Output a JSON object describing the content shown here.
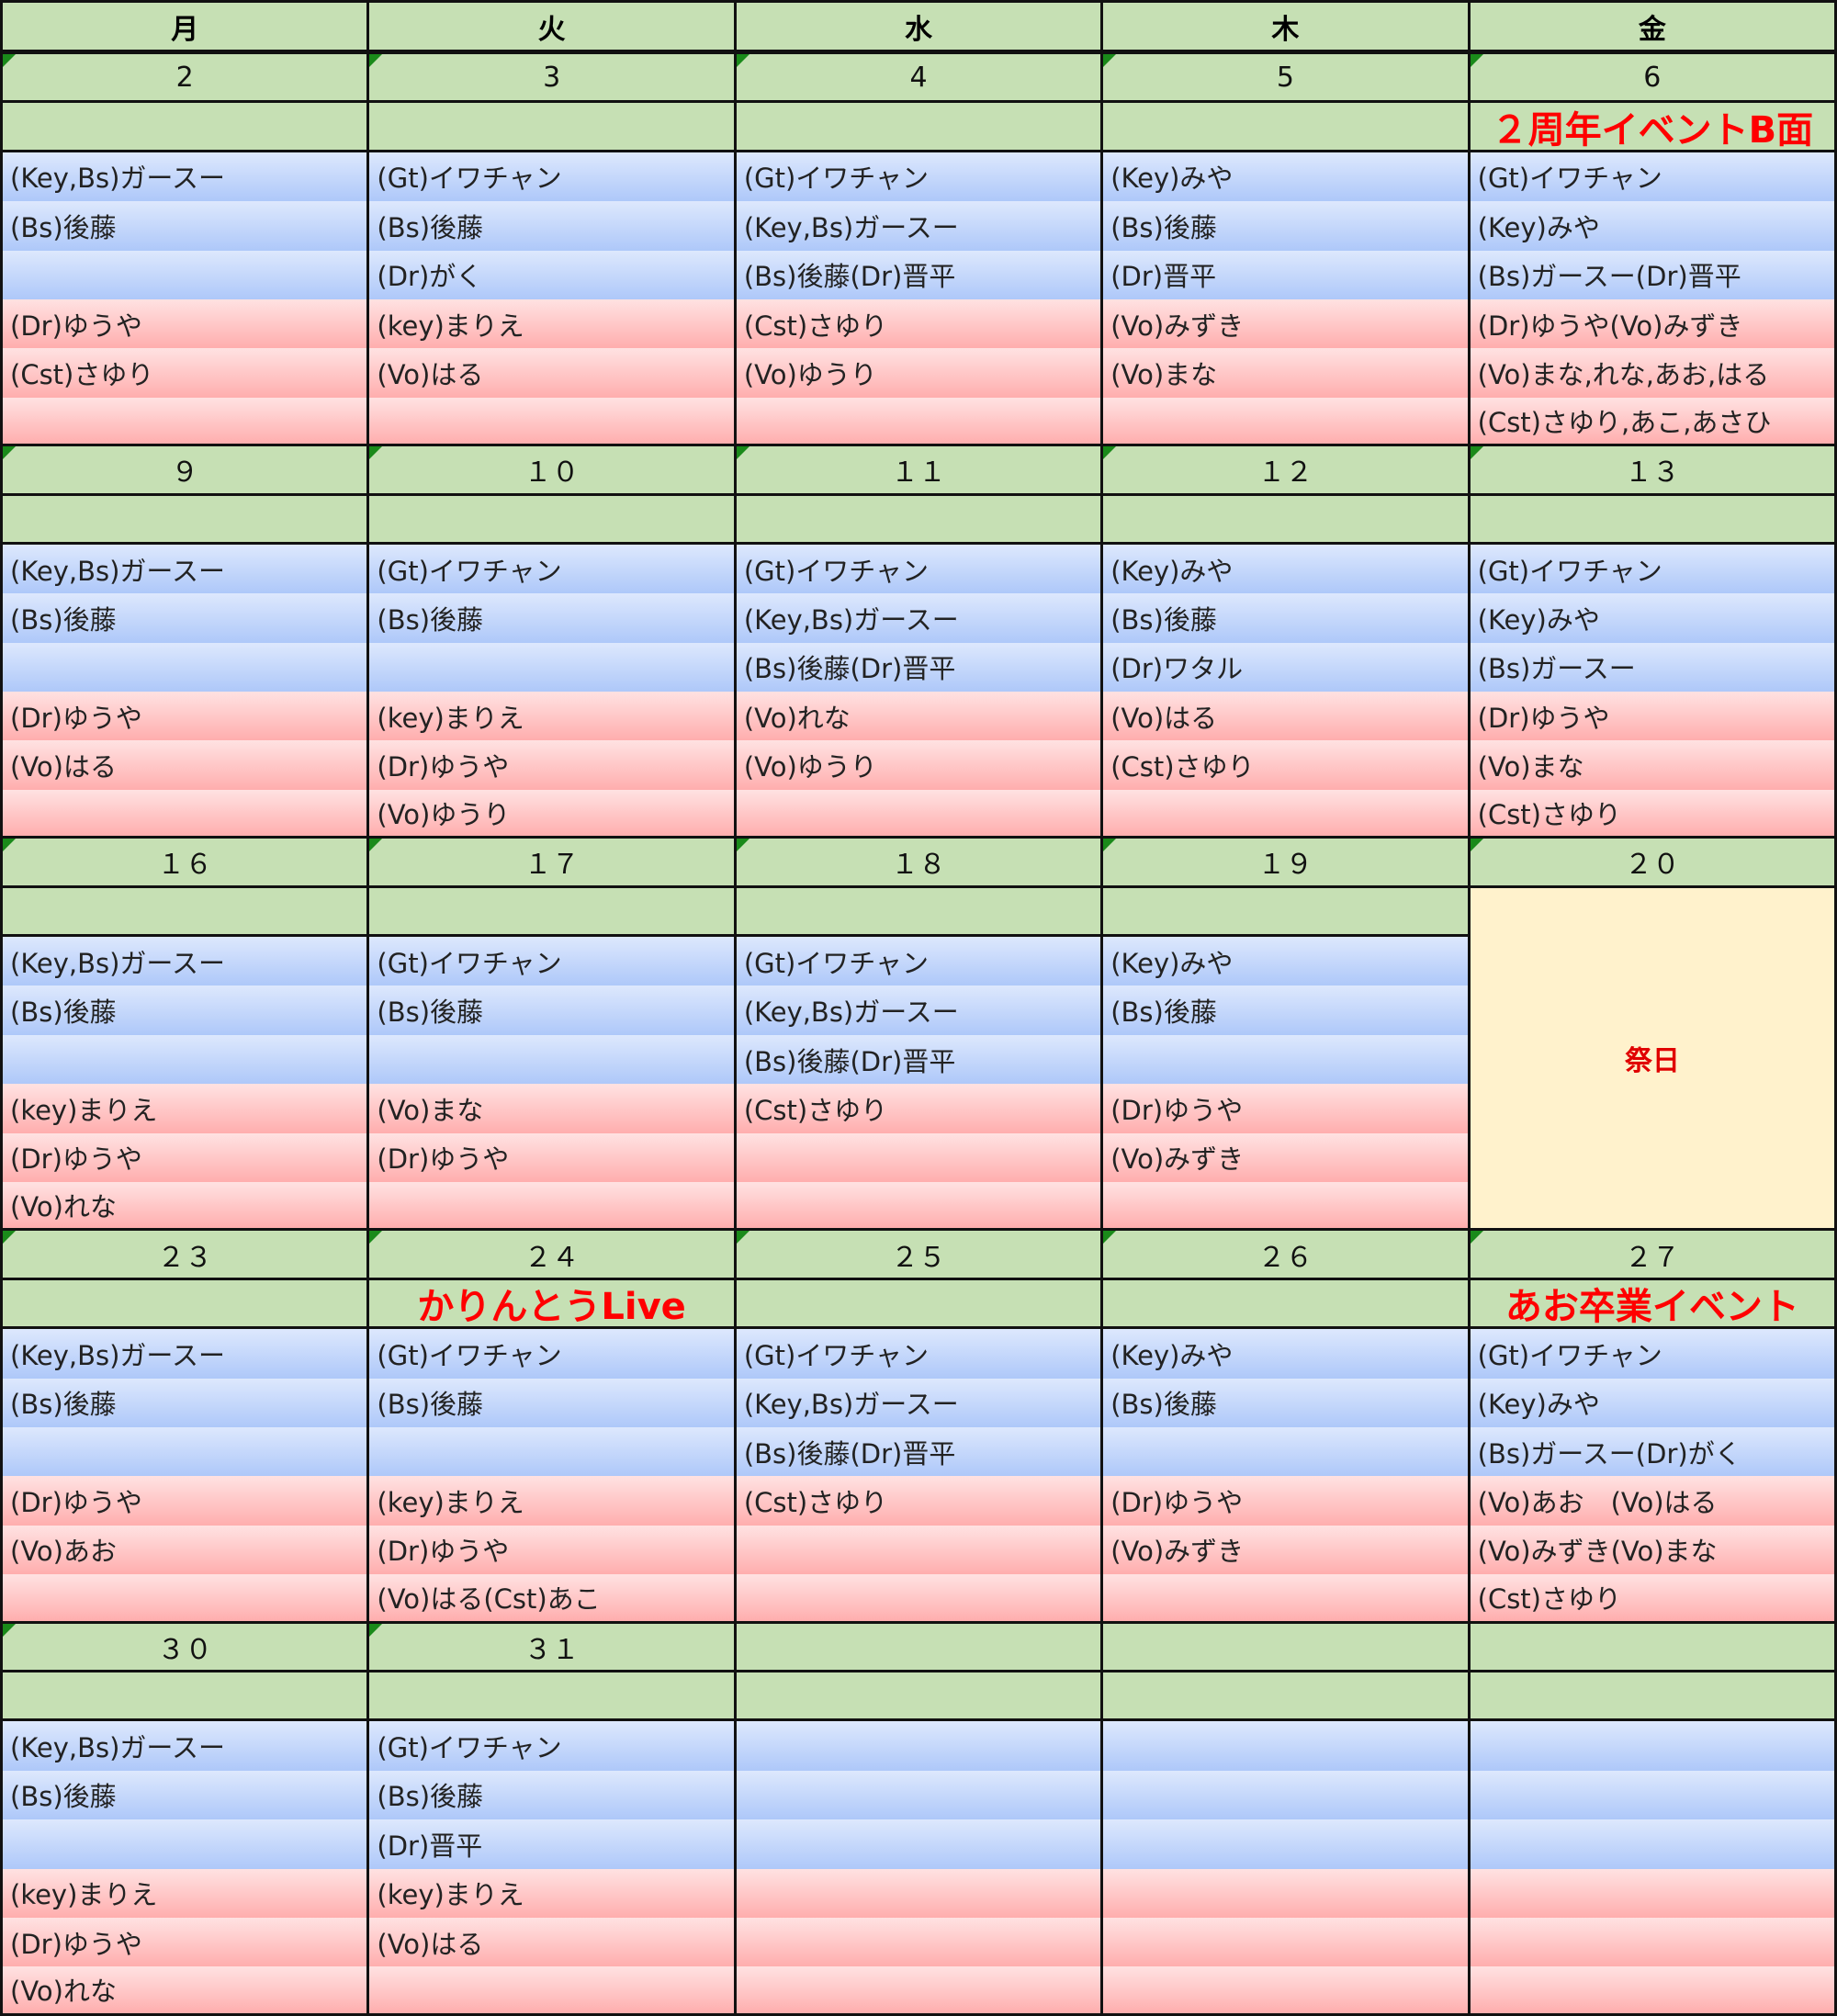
{
  "colors": {
    "header_green": "#c6e0b4",
    "blue": "#aec8f9",
    "pink": "#ffaeae",
    "holiday": "#fff2cc",
    "event_red": "#ff0000"
  },
  "weekdays": [
    "月",
    "火",
    "水",
    "木",
    "金"
  ],
  "weeks": [
    {
      "days": [
        {
          "date": "2",
          "event": "",
          "members": [
            "(Key,Bs)ガースー",
            "(Bs)後藤",
            "",
            "(Dr)ゆうや",
            "(Cst)さゆり",
            ""
          ]
        },
        {
          "date": "3",
          "event": "",
          "members": [
            "(Gt)イワチャン",
            "(Bs)後藤",
            "(Dr)がく",
            "(key)まりえ",
            "(Vo)はる",
            ""
          ]
        },
        {
          "date": "4",
          "event": "",
          "members": [
            "(Gt)イワチャン",
            "(Key,Bs)ガースー",
            "(Bs)後藤(Dr)晋平",
            "(Cst)さゆり",
            "(Vo)ゆうり",
            ""
          ]
        },
        {
          "date": "5",
          "event": "",
          "members": [
            "(Key)みや",
            "(Bs)後藤",
            "(Dr)晋平",
            "(Vo)みずき",
            "(Vo)まな",
            ""
          ]
        },
        {
          "date": "6",
          "event": "２周年イベントB面",
          "members": [
            "(Gt)イワチャン",
            "(Key)みや",
            "(Bs)ガースー(Dr)晋平",
            "(Dr)ゆうや(Vo)みずき",
            "(Vo)まな,れな,あお,はる",
            "(Cst)さゆり,あこ,あさひ"
          ]
        }
      ]
    },
    {
      "days": [
        {
          "date": "９",
          "event": "",
          "members": [
            "(Key,Bs)ガースー",
            "(Bs)後藤",
            "",
            "(Dr)ゆうや",
            "(Vo)はる",
            ""
          ]
        },
        {
          "date": "１０",
          "event": "",
          "members": [
            "(Gt)イワチャン",
            "(Bs)後藤",
            "",
            "(key)まりえ",
            "(Dr)ゆうや",
            "(Vo)ゆうり"
          ]
        },
        {
          "date": "１１",
          "event": "",
          "members": [
            "(Gt)イワチャン",
            "(Key,Bs)ガースー",
            "(Bs)後藤(Dr)晋平",
            "(Vo)れな",
            "(Vo)ゆうり",
            ""
          ]
        },
        {
          "date": "１２",
          "event": "",
          "members": [
            "(Key)みや",
            "(Bs)後藤",
            "(Dr)ワタル",
            "(Vo)はる",
            "(Cst)さゆり",
            ""
          ]
        },
        {
          "date": "１３",
          "event": "",
          "members": [
            "(Gt)イワチャン",
            "(Key)みや",
            "(Bs)ガースー",
            "(Dr)ゆうや",
            "(Vo)まな",
            "(Cst)さゆり"
          ]
        }
      ]
    },
    {
      "days": [
        {
          "date": "１６",
          "event": "",
          "members": [
            "(Key,Bs)ガースー",
            "(Bs)後藤",
            "",
            "(key)まりえ",
            "(Dr)ゆうや",
            "(Vo)れな"
          ]
        },
        {
          "date": "１７",
          "event": "",
          "members": [
            "(Gt)イワチャン",
            "(Bs)後藤",
            "",
            "(Vo)まな",
            "(Dr)ゆうや",
            ""
          ]
        },
        {
          "date": "１８",
          "event": "",
          "members": [
            "(Gt)イワチャン",
            "(Key,Bs)ガースー",
            "(Bs)後藤(Dr)晋平",
            "(Cst)さゆり",
            "",
            ""
          ]
        },
        {
          "date": "１９",
          "event": "",
          "members": [
            "(Key)みや",
            "(Bs)後藤",
            "",
            "(Dr)ゆうや",
            "(Vo)みずき",
            ""
          ]
        },
        {
          "date": "２０",
          "holiday": "祭日"
        }
      ]
    },
    {
      "days": [
        {
          "date": "２３",
          "event": "",
          "members": [
            "(Key,Bs)ガースー",
            "(Bs)後藤",
            "",
            "(Dr)ゆうや",
            "(Vo)あお",
            ""
          ]
        },
        {
          "date": "２４",
          "event": "かりんとうLive",
          "members": [
            "(Gt)イワチャン",
            "(Bs)後藤",
            "",
            "(key)まりえ",
            "(Dr)ゆうや",
            "(Vo)はる(Cst)あこ"
          ]
        },
        {
          "date": "２５",
          "event": "",
          "members": [
            "(Gt)イワチャン",
            "(Key,Bs)ガースー",
            "(Bs)後藤(Dr)晋平",
            "(Cst)さゆり",
            "",
            ""
          ]
        },
        {
          "date": "２６",
          "event": "",
          "members": [
            "(Key)みや",
            "(Bs)後藤",
            "",
            "(Dr)ゆうや",
            "(Vo)みずき",
            ""
          ]
        },
        {
          "date": "２７",
          "event": "あお卒業イベント",
          "members": [
            "(Gt)イワチャン",
            "(Key)みや",
            "(Bs)ガースー(Dr)がく",
            "(Vo)あお　(Vo)はる",
            "(Vo)みずき(Vo)まな",
            "(Cst)さゆり"
          ]
        }
      ]
    },
    {
      "days": [
        {
          "date": "３０",
          "event": "",
          "members": [
            "(Key,Bs)ガースー",
            "(Bs)後藤",
            "",
            "(key)まりえ",
            "(Dr)ゆうや",
            "(Vo)れな"
          ]
        },
        {
          "date": "３１",
          "event": "",
          "members": [
            "(Gt)イワチャン",
            "(Bs)後藤",
            "(Dr)晋平",
            "(key)まりえ",
            "(Vo)はる",
            ""
          ]
        },
        {
          "date": "",
          "event": "",
          "members": [
            "",
            "",
            "",
            "",
            "",
            ""
          ]
        },
        {
          "date": "",
          "event": "",
          "members": [
            "",
            "",
            "",
            "",
            "",
            ""
          ]
        },
        {
          "date": "",
          "event": "",
          "members": [
            "",
            "",
            "",
            "",
            "",
            ""
          ]
        }
      ]
    }
  ]
}
